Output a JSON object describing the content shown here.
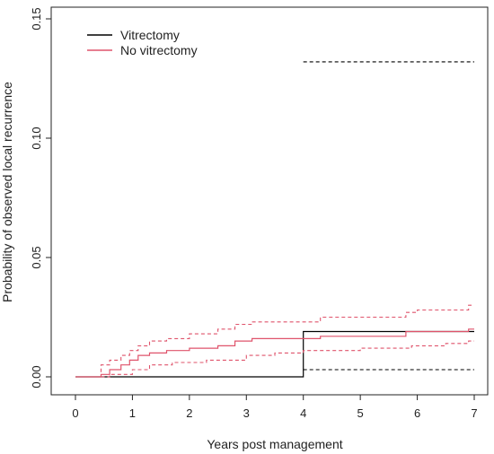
{
  "chart_data": {
    "type": "line",
    "subtype": "step (cumulative incidence with confidence bands)",
    "xlabel": "Years post management",
    "ylabel": "Probability of observed local recurrence",
    "xlim": [
      0,
      7
    ],
    "ylim": [
      0,
      0.15
    ],
    "x_ticks": [
      "0",
      "1",
      "2",
      "3",
      "4",
      "5",
      "6",
      "7"
    ],
    "y_ticks": [
      "0.00",
      "0.05",
      "0.10",
      "0.15"
    ],
    "grid": false,
    "legend": "top-left",
    "series": [
      {
        "name": "Vitrectomy",
        "color": "#000000",
        "estimate": [
          [
            0,
            0
          ],
          [
            4.0,
            0
          ],
          [
            4.0,
            0.019
          ],
          [
            7.0,
            0.019
          ]
        ],
        "lower_ci": [
          [
            4.0,
            0.003
          ],
          [
            7.0,
            0.003
          ]
        ],
        "upper_ci": [
          [
            4.0,
            0.132
          ],
          [
            7.0,
            0.132
          ]
        ]
      },
      {
        "name": "No vitrectomy",
        "color": "#df536b",
        "estimate": [
          [
            0,
            0
          ],
          [
            0.45,
            0
          ],
          [
            0.45,
            0.001
          ],
          [
            0.6,
            0.001
          ],
          [
            0.6,
            0.003
          ],
          [
            0.8,
            0.003
          ],
          [
            0.8,
            0.005
          ],
          [
            0.95,
            0.005
          ],
          [
            0.95,
            0.007
          ],
          [
            1.1,
            0.007
          ],
          [
            1.1,
            0.009
          ],
          [
            1.3,
            0.009
          ],
          [
            1.3,
            0.01
          ],
          [
            1.6,
            0.01
          ],
          [
            1.6,
            0.011
          ],
          [
            2.0,
            0.011
          ],
          [
            2.0,
            0.012
          ],
          [
            2.5,
            0.012
          ],
          [
            2.5,
            0.013
          ],
          [
            2.8,
            0.013
          ],
          [
            2.8,
            0.015
          ],
          [
            3.1,
            0.015
          ],
          [
            3.1,
            0.016
          ],
          [
            4.3,
            0.016
          ],
          [
            4.3,
            0.017
          ],
          [
            5.8,
            0.017
          ],
          [
            5.8,
            0.019
          ],
          [
            6.9,
            0.019
          ],
          [
            6.9,
            0.02
          ],
          [
            7.0,
            0.02
          ]
        ],
        "lower_ci": [
          [
            0.45,
            0
          ],
          [
            0.6,
            0
          ],
          [
            0.6,
            0.001
          ],
          [
            1.0,
            0.001
          ],
          [
            1.0,
            0.003
          ],
          [
            1.3,
            0.003
          ],
          [
            1.3,
            0.005
          ],
          [
            1.7,
            0.005
          ],
          [
            1.7,
            0.006
          ],
          [
            2.3,
            0.006
          ],
          [
            2.3,
            0.007
          ],
          [
            3.0,
            0.007
          ],
          [
            3.0,
            0.009
          ],
          [
            3.5,
            0.009
          ],
          [
            3.5,
            0.01
          ],
          [
            4.0,
            0.01
          ],
          [
            4.0,
            0.011
          ],
          [
            5.0,
            0.011
          ],
          [
            5.0,
            0.012
          ],
          [
            5.9,
            0.012
          ],
          [
            5.9,
            0.013
          ],
          [
            6.5,
            0.013
          ],
          [
            6.5,
            0.014
          ],
          [
            6.9,
            0.014
          ],
          [
            6.9,
            0.015
          ],
          [
            7.0,
            0.015
          ]
        ],
        "upper_ci": [
          [
            0.45,
            0.002
          ],
          [
            0.45,
            0.005
          ],
          [
            0.6,
            0.005
          ],
          [
            0.6,
            0.007
          ],
          [
            0.8,
            0.007
          ],
          [
            0.8,
            0.009
          ],
          [
            0.95,
            0.009
          ],
          [
            0.95,
            0.011
          ],
          [
            1.1,
            0.011
          ],
          [
            1.1,
            0.013
          ],
          [
            1.3,
            0.013
          ],
          [
            1.3,
            0.015
          ],
          [
            1.6,
            0.015
          ],
          [
            1.6,
            0.016
          ],
          [
            2.0,
            0.016
          ],
          [
            2.0,
            0.018
          ],
          [
            2.5,
            0.018
          ],
          [
            2.5,
            0.02
          ],
          [
            2.8,
            0.02
          ],
          [
            2.8,
            0.022
          ],
          [
            3.1,
            0.022
          ],
          [
            3.1,
            0.023
          ],
          [
            4.3,
            0.023
          ],
          [
            4.3,
            0.025
          ],
          [
            5.8,
            0.025
          ],
          [
            5.8,
            0.027
          ],
          [
            6.0,
            0.027
          ],
          [
            6.0,
            0.028
          ],
          [
            6.9,
            0.028
          ],
          [
            6.9,
            0.03
          ],
          [
            7.0,
            0.03
          ]
        ]
      }
    ]
  }
}
